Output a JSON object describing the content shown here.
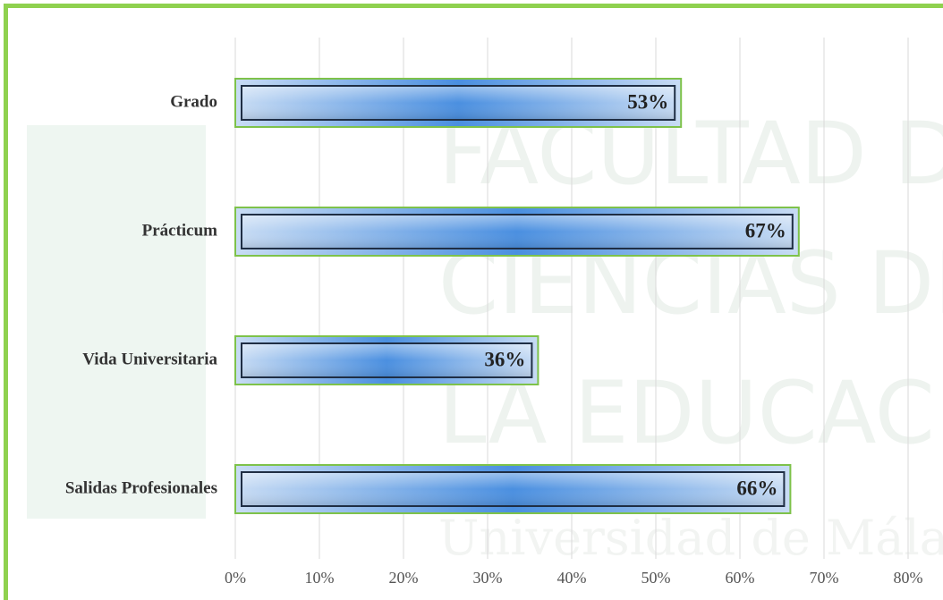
{
  "chart_data": {
    "type": "bar",
    "orientation": "horizontal",
    "categories": [
      "Grado",
      "Prácticum",
      "Vida Universitaria",
      "Salidas Profesionales"
    ],
    "values": [
      53,
      67,
      36,
      66
    ],
    "value_labels": [
      "53%",
      "67%",
      "36%",
      "66%"
    ],
    "color": "#4a8fe0",
    "xlim": [
      0,
      80
    ],
    "xticks": [
      {
        "value": 0,
        "label": "0%"
      },
      {
        "value": 10,
        "label": "10%"
      },
      {
        "value": 20,
        "label": "20%"
      },
      {
        "value": 30,
        "label": "30%"
      },
      {
        "value": 40,
        "label": "40%"
      },
      {
        "value": 50,
        "label": "50%"
      },
      {
        "value": 60,
        "label": "60%"
      },
      {
        "value": 70,
        "label": "70%"
      },
      {
        "value": 80,
        "label": "80%"
      }
    ],
    "grid": true,
    "watermark": [
      "FACULTAD DE",
      "CIENCIAS DE",
      "LA EDUCACIÓN",
      "Universidad de Málaga"
    ]
  }
}
